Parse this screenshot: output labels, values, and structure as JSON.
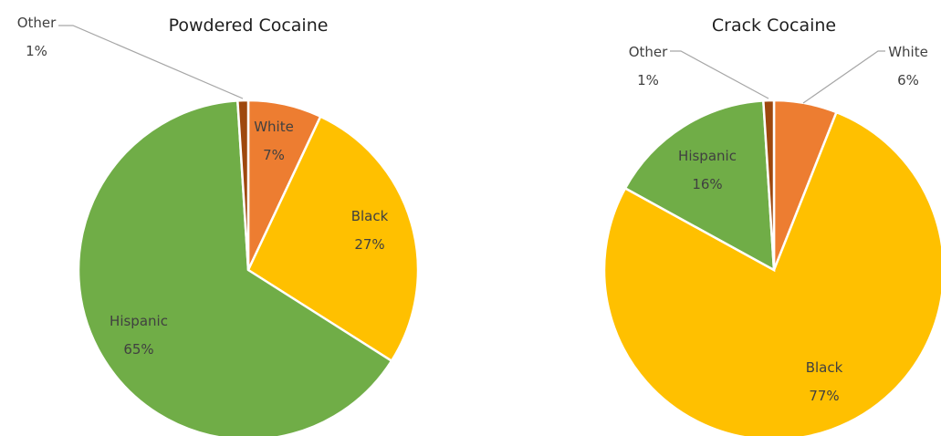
{
  "chart_data": [
    {
      "type": "pie",
      "title": "Powdered Cocaine",
      "slices": [
        {
          "label": "White",
          "value": 7,
          "value_label": "7%",
          "color": "#ed7d31"
        },
        {
          "label": "Black",
          "value": 27,
          "value_label": "27%",
          "color": "#ffc000"
        },
        {
          "label": "Hispanic",
          "value": 65,
          "value_label": "65%",
          "color": "#70ad47"
        },
        {
          "label": "Other",
          "value": 1,
          "value_label": "1%",
          "color": "#9e480e"
        }
      ]
    },
    {
      "type": "pie",
      "title": "Crack Cocaine",
      "slices": [
        {
          "label": "White",
          "value": 6,
          "value_label": "6%",
          "color": "#ed7d31"
        },
        {
          "label": "Black",
          "value": 77,
          "value_label": "77%",
          "color": "#ffc000"
        },
        {
          "label": "Hispanic",
          "value": 16,
          "value_label": "16%",
          "color": "#70ad47"
        },
        {
          "label": "Other",
          "value": 1,
          "value_label": "1%",
          "color": "#9e480e"
        }
      ]
    }
  ]
}
